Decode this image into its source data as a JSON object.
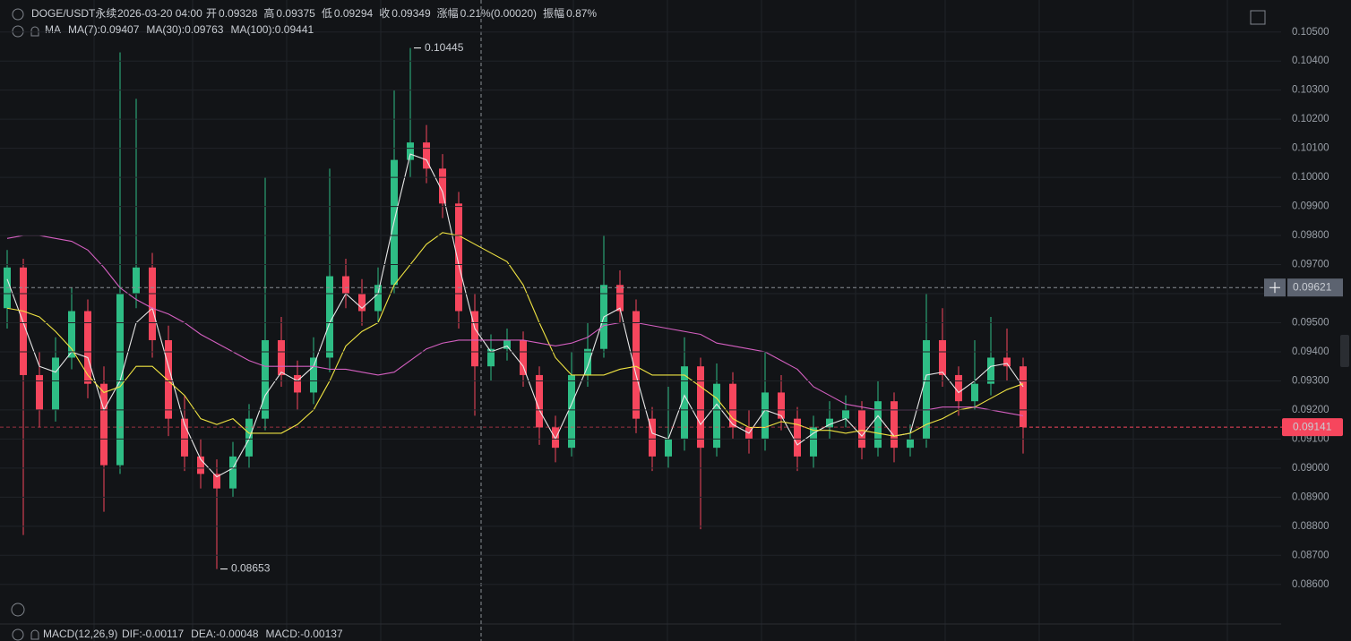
{
  "chart_data": {
    "type": "candlestick",
    "legend": {
      "symbol": "DOGE/USDT永续",
      "time": "2026-03-20 04:00",
      "fields": [
        {
          "label": "开",
          "value": 0.09328
        },
        {
          "label": "高",
          "value": 0.09375
        },
        {
          "label": "低",
          "value": 0.09294
        },
        {
          "label": "收",
          "value": 0.09349
        },
        {
          "label": "涨幅",
          "value": "0.21%(0.00020)"
        },
        {
          "label": "振幅",
          "value": "0.87%"
        }
      ]
    },
    "ma_label": "MA",
    "up_color": "#2ebd85",
    "down_color": "#f6465d",
    "open": [
      0.0955,
      0.0969,
      0.0932,
      0.092,
      0.0938,
      0.0954,
      0.0929,
      0.0901,
      0.096,
      0.0969,
      0.0944,
      0.0917,
      0.0904,
      0.0898,
      0.0893,
      0.0904,
      0.0917,
      0.0944,
      0.0932,
      0.0926,
      0.0938,
      0.0966,
      0.096,
      0.0954,
      0.0963,
      0.1006,
      0.1012,
      0.1003,
      0.0991,
      0.0954,
      0.0935,
      0.0941,
      0.0944,
      0.0932,
      0.0914,
      0.0907,
      0.0932,
      0.0941,
      0.0963,
      0.0954,
      0.0917,
      0.0904,
      0.091,
      0.0935,
      0.0907,
      0.0929,
      0.0914,
      0.091,
      0.0926,
      0.0917,
      0.0904,
      0.0914,
      0.0917,
      0.092,
      0.0907,
      0.0923,
      0.0907,
      0.091,
      0.0944,
      0.0932,
      0.0923,
      0.0929,
      0.0938,
      0.0935
    ],
    "high": [
      0.0975,
      0.0972,
      0.094,
      0.0945,
      0.0962,
      0.0958,
      0.0935,
      0.1043,
      0.1027,
      0.0974,
      0.0949,
      0.0925,
      0.091,
      0.0903,
      0.0909,
      0.0922,
      0.1,
      0.0952,
      0.0937,
      0.0945,
      0.1003,
      0.0972,
      0.0965,
      0.0969,
      0.103,
      0.10445,
      0.1018,
      0.1008,
      0.0995,
      0.096,
      0.0946,
      0.0948,
      0.0947,
      0.0935,
      0.0918,
      0.094,
      0.095,
      0.098,
      0.0968,
      0.0958,
      0.0921,
      0.0928,
      0.0945,
      0.0938,
      0.0936,
      0.0933,
      0.092,
      0.094,
      0.0932,
      0.0921,
      0.0918,
      0.0923,
      0.0925,
      0.0923,
      0.093,
      0.0926,
      0.0915,
      0.096,
      0.0955,
      0.0935,
      0.0944,
      0.0952,
      0.0948,
      0.0938
    ],
    "low": [
      0.0948,
      0.0877,
      0.0914,
      0.0916,
      0.0934,
      0.0924,
      0.0885,
      0.0898,
      0.0955,
      0.0938,
      0.0911,
      0.0899,
      0.0893,
      0.08653,
      0.089,
      0.09,
      0.0913,
      0.0928,
      0.092,
      0.0922,
      0.0933,
      0.0955,
      0.0949,
      0.095,
      0.096,
      0.1,
      0.0998,
      0.0986,
      0.0948,
      0.0918,
      0.093,
      0.0937,
      0.0928,
      0.0908,
      0.0902,
      0.0904,
      0.0928,
      0.0938,
      0.095,
      0.0912,
      0.0899,
      0.09,
      0.0906,
      0.0879,
      0.0904,
      0.091,
      0.0905,
      0.0906,
      0.0913,
      0.0899,
      0.09,
      0.091,
      0.0914,
      0.0903,
      0.0904,
      0.0902,
      0.0904,
      0.0907,
      0.0928,
      0.0918,
      0.092,
      0.0925,
      0.093,
      0.0905
    ],
    "close": [
      0.0969,
      0.0932,
      0.092,
      0.0938,
      0.0954,
      0.0929,
      0.0901,
      0.096,
      0.0969,
      0.0944,
      0.0917,
      0.0904,
      0.0898,
      0.0893,
      0.0904,
      0.0917,
      0.0944,
      0.0932,
      0.0926,
      0.0938,
      0.0966,
      0.096,
      0.0954,
      0.0963,
      0.1006,
      0.1012,
      0.1003,
      0.0991,
      0.0954,
      0.0935,
      0.0941,
      0.0944,
      0.0932,
      0.0914,
      0.0907,
      0.0932,
      0.0941,
      0.0963,
      0.0954,
      0.0917,
      0.0904,
      0.091,
      0.0935,
      0.0907,
      0.0929,
      0.0914,
      0.091,
      0.0926,
      0.0917,
      0.0904,
      0.0914,
      0.0917,
      0.092,
      0.0907,
      0.0923,
      0.0907,
      0.091,
      0.0944,
      0.0932,
      0.0923,
      0.0929,
      0.0938,
      0.0935,
      0.09141
    ],
    "series": [
      {
        "name": "MA(7):0.09407",
        "color": "#e8e8e8",
        "values": [
          0.0965,
          0.095,
          0.0935,
          0.0933,
          0.094,
          0.0938,
          0.092,
          0.093,
          0.095,
          0.0955,
          0.0935,
          0.0915,
          0.0903,
          0.0897,
          0.09,
          0.091,
          0.0925,
          0.0933,
          0.093,
          0.0935,
          0.095,
          0.096,
          0.0955,
          0.096,
          0.0985,
          0.1008,
          0.1006,
          0.0995,
          0.097,
          0.0948,
          0.094,
          0.0942,
          0.0935,
          0.092,
          0.091,
          0.0922,
          0.0935,
          0.0952,
          0.0955,
          0.0932,
          0.0912,
          0.091,
          0.0925,
          0.0915,
          0.0922,
          0.0915,
          0.0912,
          0.092,
          0.0918,
          0.0908,
          0.0912,
          0.0915,
          0.0917,
          0.0911,
          0.0918,
          0.0911,
          0.0912,
          0.0932,
          0.0933,
          0.0926,
          0.093,
          0.0935,
          0.0936,
          0.0928
        ]
      },
      {
        "name": "MA(30):0.09763",
        "color": "#f0e442",
        "values": [
          0.0955,
          0.0954,
          0.0952,
          0.0947,
          0.0941,
          0.0932,
          0.0926,
          0.0928,
          0.0935,
          0.0935,
          0.093,
          0.0925,
          0.0917,
          0.0915,
          0.0917,
          0.0912,
          0.0912,
          0.0912,
          0.0915,
          0.092,
          0.093,
          0.0942,
          0.0947,
          0.095,
          0.0963,
          0.097,
          0.0977,
          0.0981,
          0.098,
          0.0977,
          0.0974,
          0.0971,
          0.0963,
          0.095,
          0.0938,
          0.0932,
          0.0932,
          0.0932,
          0.0934,
          0.0935,
          0.0932,
          0.0932,
          0.0932,
          0.0928,
          0.0924,
          0.0917,
          0.0914,
          0.0914,
          0.0916,
          0.0915,
          0.0913,
          0.0913,
          0.0912,
          0.0913,
          0.0912,
          0.0911,
          0.0912,
          0.0915,
          0.0917,
          0.092,
          0.0921,
          0.0924,
          0.0927,
          0.0929
        ]
      },
      {
        "name": "MA(100):0.09441",
        "color": "#d45fc0",
        "values": [
          0.0979,
          0.098,
          0.098,
          0.0979,
          0.0978,
          0.0975,
          0.0969,
          0.0962,
          0.0958,
          0.0955,
          0.0953,
          0.095,
          0.0946,
          0.0943,
          0.094,
          0.0937,
          0.0935,
          0.0935,
          0.0935,
          0.0935,
          0.0934,
          0.0934,
          0.0933,
          0.0932,
          0.0933,
          0.0937,
          0.0941,
          0.0943,
          0.0944,
          0.0944,
          0.0944,
          0.0944,
          0.0944,
          0.0943,
          0.0942,
          0.0943,
          0.0945,
          0.0949,
          0.095,
          0.095,
          0.0949,
          0.0948,
          0.0947,
          0.0946,
          0.0943,
          0.0942,
          0.0941,
          0.094,
          0.0937,
          0.0934,
          0.0928,
          0.0925,
          0.0922,
          0.0921,
          0.092,
          0.092,
          0.092,
          0.092,
          0.0921,
          0.0921,
          0.0921,
          0.092,
          0.0919,
          0.0918
        ]
      }
    ],
    "high_marker": 0.10445,
    "low_marker": 0.08653,
    "crosshair_price": 0.09621,
    "last_price": 0.09141,
    "ylim": [
      0.0847,
      0.1061
    ],
    "yticks": [
      {
        "value": 0.086,
        "label": "0.08600"
      },
      {
        "value": 0.087,
        "label": "0.08700"
      },
      {
        "value": 0.088,
        "label": "0.08800"
      },
      {
        "value": 0.089,
        "label": "0.08900"
      },
      {
        "value": 0.09,
        "label": "0.09000"
      },
      {
        "value": 0.091,
        "label": "0.09100"
      },
      {
        "value": 0.092,
        "label": "0.09200"
      },
      {
        "value": 0.093,
        "label": "0.09300"
      },
      {
        "value": 0.094,
        "label": "0.09400"
      },
      {
        "value": 0.095,
        "label": "0.09500"
      },
      {
        "value": 0.096,
        "label": "0.09600"
      },
      {
        "value": 0.097,
        "label": "0.09700"
      },
      {
        "value": 0.098,
        "label": "0.09800"
      },
      {
        "value": 0.099,
        "label": "0.09900"
      },
      {
        "value": 0.1,
        "label": "0.10000"
      },
      {
        "value": 0.101,
        "label": "0.10100"
      },
      {
        "value": 0.102,
        "label": "0.10200"
      },
      {
        "value": 0.103,
        "label": "0.10300"
      },
      {
        "value": 0.104,
        "label": "0.10400"
      },
      {
        "value": 0.105,
        "label": "0.10500"
      }
    ],
    "grid": true,
    "macd": {
      "label": "MACD(12,26,9)",
      "items": [
        {
          "text": "DIF:-0.00117",
          "color": "#e8e8e8"
        },
        {
          "text": "DEA:-0.00048",
          "color": "#f0e442"
        },
        {
          "text": "MACD:-0.00137",
          "color": "#d45fc0"
        }
      ]
    }
  }
}
